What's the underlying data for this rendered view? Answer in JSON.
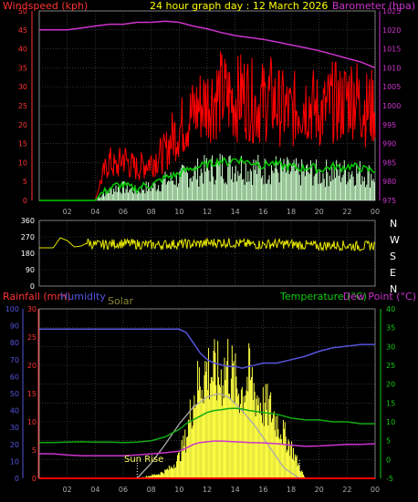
{
  "panel_top": {
    "header_title": "24 hour graph day : 12 March 2026",
    "left_label": "Windspeed (kph)",
    "right_label": "Barometer (hpa)"
  },
  "panel_bottom": {
    "rain_label": "Rainfall (mm)",
    "humidity_label": "Humidity",
    "solar_label": "Solar",
    "temp_label": "Temperature (°C)",
    "dew_label": "Dew Point (°C)",
    "sunrise_label": "Sun Rise"
  },
  "colors": {
    "gust": "#ff0000",
    "avg_wind": "#00cc00",
    "wind_light": "#ccffcc",
    "barometer": "#cc33cc",
    "direction": "#e6e600",
    "humidity": "#5555dd",
    "temperature": "#11aa11",
    "dew_point": "#cc33cc",
    "solar": "#ffff44",
    "solar_max": "#aaaaaa",
    "rain": "#ff0000",
    "grid": "#555555",
    "axis_left": "#ff3333",
    "axis_right_baro": "#cc33cc",
    "axis_hours": "#aaaaaa",
    "axis_dir": "#ffffff",
    "axis_temp": "#11cc11"
  },
  "chart_data": [
    {
      "type": "line",
      "title": "24 hour graph day : 12 March 2026",
      "x_ticks": [
        "02",
        "04",
        "06",
        "08",
        "10",
        "12",
        "14",
        "16",
        "18",
        "20",
        "22",
        "00"
      ],
      "y_left_label": "Windspeed (kph)",
      "y_left_ticks": [
        "0",
        "5",
        "10",
        "15",
        "20",
        "25",
        "30",
        "35",
        "40",
        "45",
        "50"
      ],
      "y_left_range": [
        0,
        50
      ],
      "y_right_label": "Barometer (hpa)",
      "y_right_ticks": [
        "975",
        "980",
        "985",
        "990",
        "995",
        "1000",
        "1005",
        "1010",
        "1015",
        "1020",
        "1025"
      ],
      "y_right_range": [
        975,
        1025
      ],
      "series": [
        {
          "name": "Barometer",
          "axis": "right",
          "x": [
            0,
            1,
            2,
            3,
            4,
            5,
            6,
            7,
            8,
            9,
            10,
            11,
            12,
            13,
            14,
            15,
            16,
            17,
            18,
            19,
            20,
            21,
            22,
            23,
            24
          ],
          "values": [
            1020,
            1020,
            1020,
            1020.5,
            1021,
            1021.5,
            1021.5,
            1022,
            1022,
            1022.3,
            1022,
            1021,
            1020.3,
            1019.3,
            1018.5,
            1018,
            1017.5,
            1016.8,
            1016,
            1015.3,
            1014.5,
            1013.5,
            1012.5,
            1011.5,
            1010
          ]
        },
        {
          "name": "Wind Gust",
          "axis": "left",
          "x": [
            0,
            3,
            4,
            4.5,
            5,
            5.5,
            6,
            6.5,
            7,
            7.5,
            8,
            8.5,
            9,
            9.5,
            10,
            10.5,
            11,
            11.5,
            12,
            12.5,
            13,
            13.5,
            14,
            14.5,
            15,
            15.5,
            16,
            16.5,
            17,
            17.5,
            18,
            18.5,
            19,
            19.5,
            20,
            20.5,
            21,
            21.5,
            22,
            22.5,
            23,
            23.5,
            24
          ],
          "values": [
            0,
            0,
            0,
            6,
            10,
            8,
            11,
            9,
            8,
            9,
            10,
            11,
            12,
            16,
            18,
            20,
            22,
            24,
            25,
            26,
            27,
            26,
            25,
            27,
            26,
            24,
            25,
            26,
            24,
            23,
            22,
            24,
            25,
            24,
            22,
            23,
            25,
            24,
            26,
            27,
            24,
            23,
            24
          ]
        },
        {
          "name": "Average Wind",
          "axis": "left",
          "x": [
            0,
            3,
            4,
            4.5,
            5,
            5.5,
            6,
            6.5,
            7,
            7.5,
            8,
            8.5,
            9,
            9.5,
            10,
            10.5,
            11,
            11.5,
            12,
            12.5,
            13,
            13.5,
            14,
            14.5,
            15,
            15.5,
            16,
            16.5,
            17,
            17.5,
            18,
            18.5,
            19,
            19.5,
            20,
            20.5,
            21,
            21.5,
            22,
            22.5,
            23,
            23.5,
            24
          ],
          "values": [
            0,
            0,
            0,
            2,
            3,
            4,
            4,
            3.5,
            3,
            4,
            4,
            5,
            6,
            6.5,
            7,
            8,
            8.5,
            9,
            9.5,
            10,
            10.5,
            10,
            11,
            10.5,
            10,
            10,
            9,
            10,
            9.5,
            9,
            9,
            8.5,
            8.5,
            9,
            8,
            8.5,
            9,
            8.5,
            9,
            9,
            8.5,
            8,
            8
          ]
        }
      ]
    },
    {
      "type": "line",
      "title": "",
      "x_ticks": [
        "02",
        "04",
        "06",
        "08",
        "10",
        "12",
        "14",
        "16",
        "18",
        "20",
        "22",
        "00"
      ],
      "y_left_ticks": [
        "0",
        "90",
        "180",
        "270",
        "360"
      ],
      "y_left_range": [
        0,
        360
      ],
      "y_right_ticks": [
        "N",
        "W",
        "S",
        "E",
        "N"
      ],
      "series": [
        {
          "name": "Wind Direction",
          "x": [
            0,
            1,
            1.5,
            2,
            2.5,
            3,
            3.5,
            4,
            5,
            6,
            7,
            8,
            9,
            10,
            11,
            12,
            13,
            14,
            15,
            16,
            17,
            18,
            19,
            20,
            21,
            22,
            23,
            24
          ],
          "values": [
            210,
            210,
            265,
            250,
            215,
            220,
            240,
            225,
            230,
            235,
            230,
            225,
            228,
            232,
            230,
            235,
            240,
            235,
            230,
            228,
            232,
            230,
            225,
            220,
            225,
            222,
            218,
            225
          ]
        }
      ]
    },
    {
      "type": "line",
      "title": "",
      "x_ticks": [
        "02",
        "04",
        "06",
        "08",
        "10",
        "12",
        "14",
        "16",
        "18",
        "20",
        "22",
        "00"
      ],
      "y_left_label": "Rainfall (mm)",
      "y_left_ticks": [
        "0",
        "5",
        "10",
        "15",
        "20",
        "25",
        "30"
      ],
      "y_left_range": [
        0,
        30
      ],
      "y_humidity_label": "Humidity",
      "y_humidity_ticks": [
        "0",
        "10",
        "20",
        "30",
        "40",
        "50",
        "60",
        "70",
        "80",
        "90",
        "100"
      ],
      "y_humidity_range": [
        0,
        100
      ],
      "y_right_label": "Temperature (°C)",
      "y_right_label_2": "Dew Point (°C)",
      "y_right_ticks": [
        "-5",
        "0",
        "5",
        "10",
        "15",
        "20",
        "25",
        "30",
        "35",
        "40"
      ],
      "y_right_range": [
        -5,
        40
      ],
      "annotations": [
        "Sun Rise",
        "Solar"
      ],
      "sunrise_hour": 7.0,
      "sunset_hour": 18.6,
      "series": [
        {
          "name": "Humidity",
          "axis": "humidity",
          "x": [
            0,
            1,
            2,
            3,
            4,
            5,
            6,
            7,
            8,
            9,
            10,
            10.5,
            11,
            11.5,
            12,
            12.5,
            13,
            13.5,
            14,
            14.5,
            15,
            16,
            17,
            18,
            19,
            20,
            21,
            22,
            23,
            24
          ],
          "values": [
            88,
            88,
            88,
            88,
            88,
            88,
            88,
            88,
            88,
            88,
            88,
            86,
            80,
            74,
            70,
            68,
            67,
            66,
            66,
            65,
            66,
            68,
            68,
            70,
            72,
            75,
            77,
            78,
            79,
            79
          ]
        },
        {
          "name": "Temperature",
          "axis": "right",
          "x": [
            0,
            1,
            2,
            3,
            4,
            5,
            6,
            7,
            8,
            9,
            10,
            10.5,
            11,
            11.5,
            12,
            12.5,
            13,
            13.5,
            14,
            14.5,
            15,
            16,
            17,
            18,
            19,
            20,
            21,
            22,
            23,
            24
          ],
          "values": [
            4.5,
            4.5,
            4.6,
            4.7,
            4.6,
            4.6,
            4.5,
            4.6,
            5.0,
            6.0,
            8.0,
            9.5,
            10.5,
            11.5,
            12.5,
            13.0,
            13.2,
            13.5,
            13.6,
            13.4,
            13.0,
            12.5,
            12.0,
            11.0,
            10.5,
            10.5,
            10.0,
            10.0,
            9.5,
            9.5
          ]
        },
        {
          "name": "Dew Point",
          "axis": "right",
          "x": [
            0,
            1,
            2,
            3,
            4,
            5,
            6,
            7,
            8,
            9,
            10,
            10.5,
            11,
            11.5,
            12,
            12.5,
            13,
            13.5,
            14,
            14.5,
            15,
            16,
            17,
            18,
            19,
            20,
            21,
            22,
            23,
            24
          ],
          "values": [
            1.5,
            1.5,
            1.2,
            1.0,
            1.0,
            1.0,
            1.0,
            1.2,
            1.5,
            1.8,
            2.2,
            3.0,
            4.0,
            4.5,
            4.7,
            4.9,
            4.9,
            4.8,
            4.7,
            4.6,
            4.5,
            4.4,
            4.2,
            3.8,
            3.5,
            3.6,
            3.8,
            4.0,
            4.0,
            4.2
          ]
        },
        {
          "name": "Solar",
          "axis": "humidity",
          "x": [
            0,
            7,
            7.5,
            8,
            8.5,
            9,
            9.5,
            10,
            10.5,
            11,
            11.5,
            12,
            12.5,
            13,
            13.5,
            14,
            14.5,
            15,
            15.5,
            16,
            16.5,
            17,
            17.5,
            18,
            18.5,
            19,
            24
          ],
          "values": [
            0,
            0,
            1,
            2,
            3,
            5,
            8,
            15,
            28,
            55,
            68,
            75,
            72,
            70,
            80,
            65,
            60,
            70,
            58,
            50,
            48,
            40,
            30,
            22,
            10,
            0,
            0
          ]
        },
        {
          "name": "Solar Max",
          "axis": "humidity",
          "x": [
            7.0,
            8,
            9,
            10,
            11,
            12,
            12.8,
            13.5,
            14.5,
            15.5,
            16.5,
            17.5,
            18.6
          ],
          "values": [
            0,
            9,
            20,
            32,
            42,
            48,
            50,
            48,
            40,
            30,
            18,
            6,
            0
          ]
        },
        {
          "name": "Rainfall",
          "axis": "left",
          "x": [
            0,
            24
          ],
          "values": [
            0,
            0
          ]
        }
      ]
    }
  ]
}
